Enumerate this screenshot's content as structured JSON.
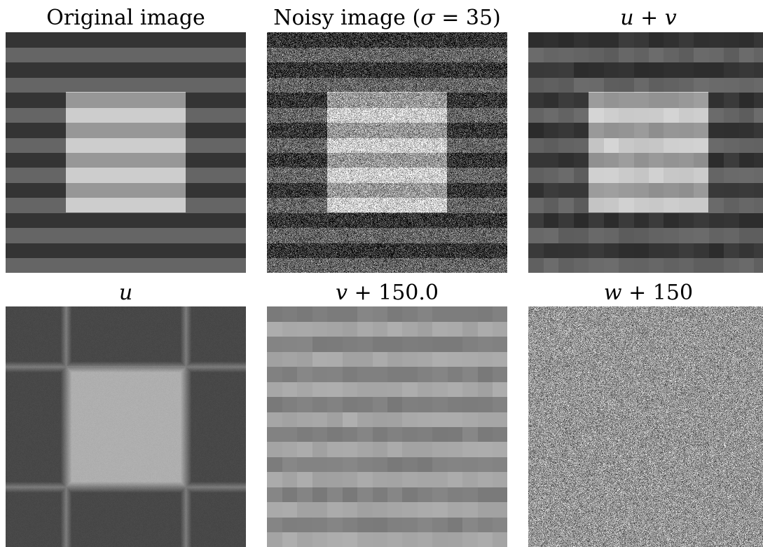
{
  "panels": [
    {
      "id": "original",
      "title": "Original image"
    },
    {
      "id": "noisy",
      "title_prefix": "Noisy image (",
      "title_math": "σ",
      "title_suffix": " = 35)"
    },
    {
      "id": "u-plus-v",
      "title_math_a": "u",
      "title_op": " + ",
      "title_math_b": "v"
    },
    {
      "id": "u",
      "title_math": "u"
    },
    {
      "id": "v-plus-150",
      "title_math": "v",
      "title_rest": " + 150.0"
    },
    {
      "id": "w-plus-150",
      "title_math": "w",
      "title_rest": " + 150"
    }
  ]
}
